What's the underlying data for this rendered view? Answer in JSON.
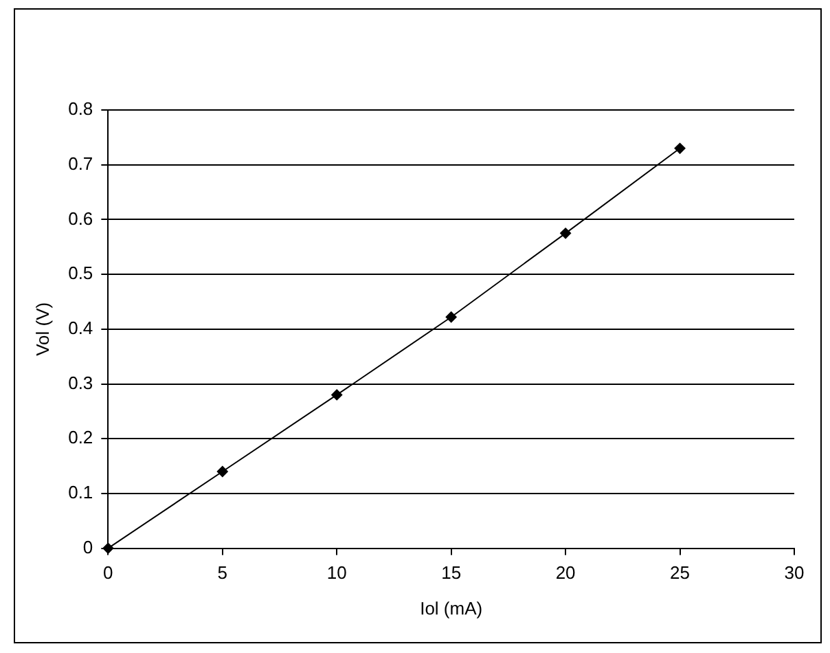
{
  "chart_data": {
    "type": "line",
    "xlabel": "Iol (mA)",
    "ylabel": "Vol (V)",
    "x": [
      0,
      5,
      10,
      15,
      20,
      25
    ],
    "series": [
      {
        "color": "#000000",
        "values": [
          0,
          0.14,
          0.28,
          0.422,
          0.575,
          0.73
        ]
      }
    ],
    "xlim": [
      0,
      30
    ],
    "xticks": [
      0,
      5,
      10,
      15,
      20,
      25,
      30
    ],
    "ylim": [
      0,
      0.8
    ],
    "yticks": [
      0,
      0.1,
      0.2,
      0.3,
      0.4,
      0.5,
      0.6,
      0.7,
      0.8
    ],
    "grid": "y",
    "legend": false,
    "marker": "diamond",
    "line_style": "solid"
  }
}
